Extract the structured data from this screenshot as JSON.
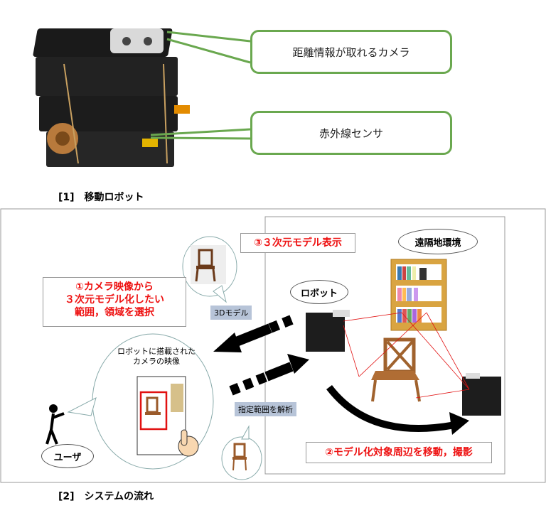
{
  "top": {
    "callout_camera": "距離情報が取れるカメラ",
    "callout_ir": "赤外線センサ",
    "caption": "[1]　移動ロボット"
  },
  "system": {
    "step3": "③３次元モデル表示",
    "step1_line1": "①カメラ映像から",
    "step1_line2": "３次元モデル化したい",
    "step1_line3": "範囲，領域を選択",
    "step2": "②モデル化対象周辺を移動，撮影",
    "tag_3d_model": "3Dモデル",
    "tag_analyze": "指定範囲を解析",
    "remote_env": "遠隔地環境",
    "robot_label": "ロボット",
    "user_label": "ユーザ",
    "camera_view_line1": "ロボットに搭載された",
    "camera_view_line2": "カメラの映像",
    "caption": "[2]　システムの流れ"
  },
  "colors": {
    "callout_border": "#6aa84f",
    "highlight_red": "#e11111",
    "tag_bg": "#b7c4d8"
  }
}
